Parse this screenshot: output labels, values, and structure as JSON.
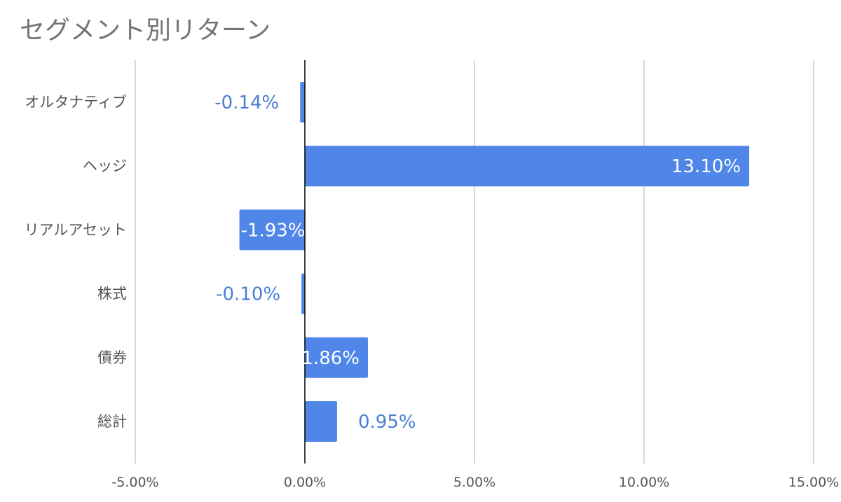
{
  "chart_data": {
    "type": "bar",
    "orientation": "horizontal",
    "title": "セグメント別リターン",
    "categories": [
      "オルタナティブ",
      "ヘッジ",
      "リアルアセット",
      "株式",
      "債券",
      "総計"
    ],
    "series": [
      {
        "values": [
          -0.14,
          13.1,
          -1.93,
          -0.1,
          1.86,
          0.95
        ]
      }
    ],
    "data_labels": [
      "-0.14%",
      "13.10%",
      "-1.93%",
      "-0.10%",
      "1.86%",
      "0.95%"
    ],
    "xlim": [
      -5,
      15
    ],
    "xticks": [
      -5,
      0,
      5,
      10,
      15
    ],
    "xtick_labels": [
      "-5.00%",
      "0.00%",
      "5.00%",
      "10.00%",
      "15.00%"
    ],
    "xlabel": "",
    "ylabel": "",
    "grid": true,
    "legend": "none",
    "bar_color": "#4f86e8",
    "label_inside_color": "#ffffff",
    "label_outside_color": "#4a7fd4",
    "gridline_color": "#cccccc",
    "baseline_color": "#000000"
  }
}
